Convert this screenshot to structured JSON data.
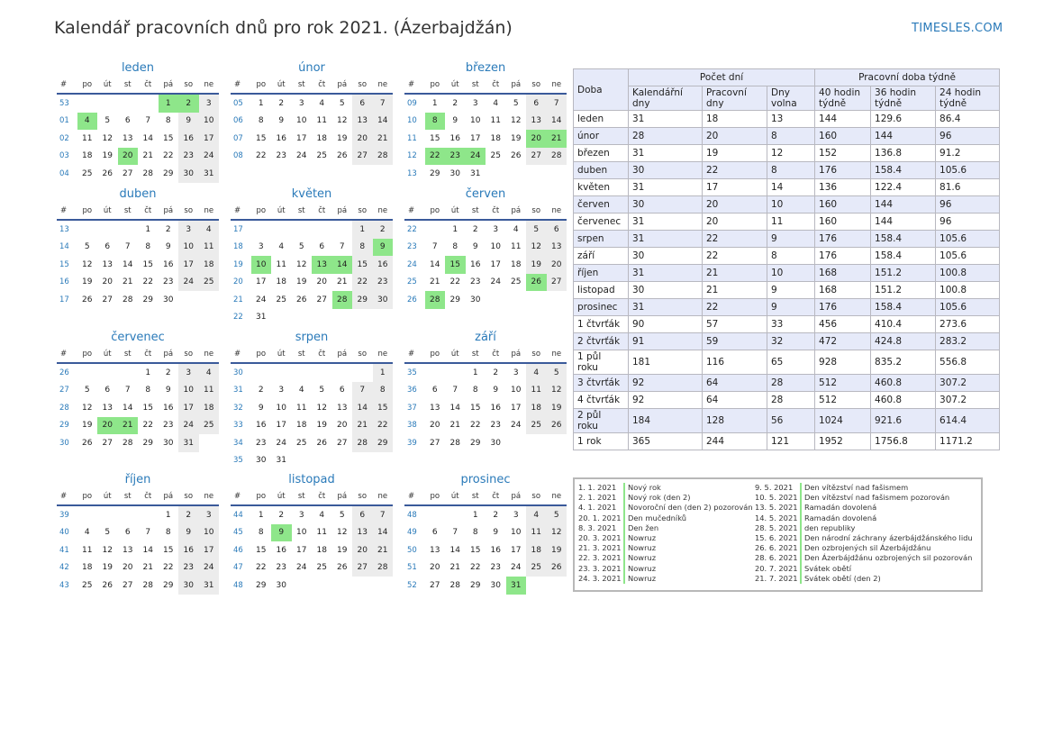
{
  "title": "Kalendář pracovních dnů pro rok 2021. (Ázerbajdžán)",
  "brand": "TIMESLES.COM",
  "colors": {
    "accent": "#2a7ab9",
    "holiday": "#8ee68a",
    "weekend": "#ececec",
    "header_bg": "#e6eaf9"
  },
  "weekday_headers": [
    "#",
    "po",
    "út",
    "st",
    "čt",
    "pá",
    "so",
    "ne"
  ],
  "months": [
    {
      "name": "leden",
      "weeks": [
        [
          "53",
          "",
          "",
          "",
          "",
          "1",
          "2",
          "3"
        ],
        [
          "01",
          "4",
          "5",
          "6",
          "7",
          "8",
          "9",
          "10"
        ],
        [
          "02",
          "11",
          "12",
          "13",
          "14",
          "15",
          "16",
          "17"
        ],
        [
          "03",
          "18",
          "19",
          "20",
          "21",
          "22",
          "23",
          "24"
        ],
        [
          "04",
          "25",
          "26",
          "27",
          "28",
          "29",
          "30",
          "31"
        ]
      ],
      "holidays": [
        "1",
        "2",
        "4",
        "20"
      ]
    },
    {
      "name": "únor",
      "weeks": [
        [
          "05",
          "1",
          "2",
          "3",
          "4",
          "5",
          "6",
          "7"
        ],
        [
          "06",
          "8",
          "9",
          "10",
          "11",
          "12",
          "13",
          "14"
        ],
        [
          "07",
          "15",
          "16",
          "17",
          "18",
          "19",
          "20",
          "21"
        ],
        [
          "08",
          "22",
          "23",
          "24",
          "25",
          "26",
          "27",
          "28"
        ]
      ],
      "holidays": []
    },
    {
      "name": "březen",
      "weeks": [
        [
          "09",
          "1",
          "2",
          "3",
          "4",
          "5",
          "6",
          "7"
        ],
        [
          "10",
          "8",
          "9",
          "10",
          "11",
          "12",
          "13",
          "14"
        ],
        [
          "11",
          "15",
          "16",
          "17",
          "18",
          "19",
          "20",
          "21"
        ],
        [
          "12",
          "22",
          "23",
          "24",
          "25",
          "26",
          "27",
          "28"
        ],
        [
          "13",
          "29",
          "30",
          "31",
          "",
          "",
          "",
          ""
        ]
      ],
      "holidays": [
        "8",
        "20",
        "21",
        "22",
        "23",
        "24"
      ]
    },
    {
      "name": "duben",
      "weeks": [
        [
          "13",
          "",
          "",
          "",
          "1",
          "2",
          "3",
          "4"
        ],
        [
          "14",
          "5",
          "6",
          "7",
          "8",
          "9",
          "10",
          "11"
        ],
        [
          "15",
          "12",
          "13",
          "14",
          "15",
          "16",
          "17",
          "18"
        ],
        [
          "16",
          "19",
          "20",
          "21",
          "22",
          "23",
          "24",
          "25"
        ],
        [
          "17",
          "26",
          "27",
          "28",
          "29",
          "30",
          "",
          ""
        ]
      ],
      "holidays": []
    },
    {
      "name": "květen",
      "weeks": [
        [
          "17",
          "",
          "",
          "",
          "",
          "",
          "1",
          "2"
        ],
        [
          "18",
          "3",
          "4",
          "5",
          "6",
          "7",
          "8",
          "9"
        ],
        [
          "19",
          "10",
          "11",
          "12",
          "13",
          "14",
          "15",
          "16"
        ],
        [
          "20",
          "17",
          "18",
          "19",
          "20",
          "21",
          "22",
          "23"
        ],
        [
          "21",
          "24",
          "25",
          "26",
          "27",
          "28",
          "29",
          "30"
        ],
        [
          "22",
          "31",
          "",
          "",
          "",
          "",
          "",
          ""
        ]
      ],
      "holidays": [
        "9",
        "10",
        "13",
        "14",
        "28"
      ]
    },
    {
      "name": "červen",
      "weeks": [
        [
          "22",
          "",
          "1",
          "2",
          "3",
          "4",
          "5",
          "6"
        ],
        [
          "23",
          "7",
          "8",
          "9",
          "10",
          "11",
          "12",
          "13"
        ],
        [
          "24",
          "14",
          "15",
          "16",
          "17",
          "18",
          "19",
          "20"
        ],
        [
          "25",
          "21",
          "22",
          "23",
          "24",
          "25",
          "26",
          "27"
        ],
        [
          "26",
          "28",
          "29",
          "30",
          "",
          "",
          "",
          ""
        ]
      ],
      "holidays": [
        "15",
        "26",
        "28"
      ]
    },
    {
      "name": "červenec",
      "weeks": [
        [
          "26",
          "",
          "",
          "",
          "1",
          "2",
          "3",
          "4"
        ],
        [
          "27",
          "5",
          "6",
          "7",
          "8",
          "9",
          "10",
          "11"
        ],
        [
          "28",
          "12",
          "13",
          "14",
          "15",
          "16",
          "17",
          "18"
        ],
        [
          "29",
          "19",
          "20",
          "21",
          "22",
          "23",
          "24",
          "25"
        ],
        [
          "30",
          "26",
          "27",
          "28",
          "29",
          "30",
          "31",
          ""
        ]
      ],
      "holidays": [
        "20",
        "21"
      ]
    },
    {
      "name": "srpen",
      "weeks": [
        [
          "30",
          "",
          "",
          "",
          "",
          "",
          "",
          "1"
        ],
        [
          "31",
          "2",
          "3",
          "4",
          "5",
          "6",
          "7",
          "8"
        ],
        [
          "32",
          "9",
          "10",
          "11",
          "12",
          "13",
          "14",
          "15"
        ],
        [
          "33",
          "16",
          "17",
          "18",
          "19",
          "20",
          "21",
          "22"
        ],
        [
          "34",
          "23",
          "24",
          "25",
          "26",
          "27",
          "28",
          "29"
        ],
        [
          "35",
          "30",
          "31",
          "",
          "",
          "",
          "",
          ""
        ]
      ],
      "holidays": []
    },
    {
      "name": "září",
      "weeks": [
        [
          "35",
          "",
          "",
          "1",
          "2",
          "3",
          "4",
          "5"
        ],
        [
          "36",
          "6",
          "7",
          "8",
          "9",
          "10",
          "11",
          "12"
        ],
        [
          "37",
          "13",
          "14",
          "15",
          "16",
          "17",
          "18",
          "19"
        ],
        [
          "38",
          "20",
          "21",
          "22",
          "23",
          "24",
          "25",
          "26"
        ],
        [
          "39",
          "27",
          "28",
          "29",
          "30",
          "",
          "",
          ""
        ]
      ],
      "holidays": []
    },
    {
      "name": "říjen",
      "weeks": [
        [
          "39",
          "",
          "",
          "",
          "",
          "1",
          "2",
          "3"
        ],
        [
          "40",
          "4",
          "5",
          "6",
          "7",
          "8",
          "9",
          "10"
        ],
        [
          "41",
          "11",
          "12",
          "13",
          "14",
          "15",
          "16",
          "17"
        ],
        [
          "42",
          "18",
          "19",
          "20",
          "21",
          "22",
          "23",
          "24"
        ],
        [
          "43",
          "25",
          "26",
          "27",
          "28",
          "29",
          "30",
          "31"
        ]
      ],
      "holidays": []
    },
    {
      "name": "listopad",
      "weeks": [
        [
          "44",
          "1",
          "2",
          "3",
          "4",
          "5",
          "6",
          "7"
        ],
        [
          "45",
          "8",
          "9",
          "10",
          "11",
          "12",
          "13",
          "14"
        ],
        [
          "46",
          "15",
          "16",
          "17",
          "18",
          "19",
          "20",
          "21"
        ],
        [
          "47",
          "22",
          "23",
          "24",
          "25",
          "26",
          "27",
          "28"
        ],
        [
          "48",
          "29",
          "30",
          "",
          "",
          "",
          "",
          ""
        ]
      ],
      "holidays": [
        "9"
      ]
    },
    {
      "name": "prosinec",
      "weeks": [
        [
          "48",
          "",
          "",
          "1",
          "2",
          "3",
          "4",
          "5"
        ],
        [
          "49",
          "6",
          "7",
          "8",
          "9",
          "10",
          "11",
          "12"
        ],
        [
          "50",
          "13",
          "14",
          "15",
          "16",
          "17",
          "18",
          "19"
        ],
        [
          "51",
          "20",
          "21",
          "22",
          "23",
          "24",
          "25",
          "26"
        ],
        [
          "52",
          "27",
          "28",
          "29",
          "30",
          "31",
          "",
          ""
        ]
      ],
      "holidays": [
        "31"
      ]
    }
  ],
  "stats": {
    "group1": "Počet dní",
    "group2": "Pracovní doba týdně",
    "headers": [
      "Doba",
      "Kalendářní dny",
      "Pracovní dny",
      "Dny volna",
      "40 hodin týdně",
      "36 hodin týdně",
      "24 hodin týdně"
    ],
    "rows": [
      [
        "leden",
        "31",
        "18",
        "13",
        "144",
        "129.6",
        "86.4"
      ],
      [
        "únor",
        "28",
        "20",
        "8",
        "160",
        "144",
        "96"
      ],
      [
        "březen",
        "31",
        "19",
        "12",
        "152",
        "136.8",
        "91.2"
      ],
      [
        "duben",
        "30",
        "22",
        "8",
        "176",
        "158.4",
        "105.6"
      ],
      [
        "květen",
        "31",
        "17",
        "14",
        "136",
        "122.4",
        "81.6"
      ],
      [
        "červen",
        "30",
        "20",
        "10",
        "160",
        "144",
        "96"
      ],
      [
        "červenec",
        "31",
        "20",
        "11",
        "160",
        "144",
        "96"
      ],
      [
        "srpen",
        "31",
        "22",
        "9",
        "176",
        "158.4",
        "105.6"
      ],
      [
        "září",
        "30",
        "22",
        "8",
        "176",
        "158.4",
        "105.6"
      ],
      [
        "říjen",
        "31",
        "21",
        "10",
        "168",
        "151.2",
        "100.8"
      ],
      [
        "listopad",
        "30",
        "21",
        "9",
        "168",
        "151.2",
        "100.8"
      ],
      [
        "prosinec",
        "31",
        "22",
        "9",
        "176",
        "158.4",
        "105.6"
      ],
      [
        "1 čtvrťák",
        "90",
        "57",
        "33",
        "456",
        "410.4",
        "273.6"
      ],
      [
        "2 čtvrťák",
        "91",
        "59",
        "32",
        "472",
        "424.8",
        "283.2"
      ],
      [
        "1 půl roku",
        "181",
        "116",
        "65",
        "928",
        "835.2",
        "556.8"
      ],
      [
        "3 čtvrťák",
        "92",
        "64",
        "28",
        "512",
        "460.8",
        "307.2"
      ],
      [
        "4 čtvrťák",
        "92",
        "64",
        "28",
        "512",
        "460.8",
        "307.2"
      ],
      [
        "2 půl roku",
        "184",
        "128",
        "56",
        "1024",
        "921.6",
        "614.4"
      ],
      [
        "1 rok",
        "365",
        "244",
        "121",
        "1952",
        "1756.8",
        "1171.2"
      ]
    ]
  },
  "holidays_left": [
    [
      "1. 1. 2021",
      "Nový rok"
    ],
    [
      "2. 1. 2021",
      "Nový rok (den 2)"
    ],
    [
      "4. 1. 2021",
      "Novoroční den (den 2) pozorován"
    ],
    [
      "20. 1. 2021",
      "Den mučedníků"
    ],
    [
      "8. 3. 2021",
      "Den žen"
    ],
    [
      "20. 3. 2021",
      "Nowruz"
    ],
    [
      "21. 3. 2021",
      "Nowruz"
    ],
    [
      "22. 3. 2021",
      "Nowruz"
    ],
    [
      "23. 3. 2021",
      "Nowruz"
    ],
    [
      "24. 3. 2021",
      "Nowruz"
    ]
  ],
  "holidays_right": [
    [
      "9. 5. 2021",
      "Den vítězství nad fašismem"
    ],
    [
      "10. 5. 2021",
      "Den vítězství nad fašismem pozorován"
    ],
    [
      "13. 5. 2021",
      "Ramadán dovolená"
    ],
    [
      "14. 5. 2021",
      "Ramadán dovolená"
    ],
    [
      "28. 5. 2021",
      "den republiky"
    ],
    [
      "15. 6. 2021",
      "Den národní záchrany ázerbájdžánského lidu"
    ],
    [
      "26. 6. 2021",
      "Den ozbrojených sil Ázerbájdžánu"
    ],
    [
      "28. 6. 2021",
      "Den Ázerbájdžánu ozbrojených sil pozorován"
    ],
    [
      "20. 7. 2021",
      "Svátek obětí"
    ],
    [
      "21. 7. 2021",
      "Svátek obětí (den 2)"
    ]
  ]
}
